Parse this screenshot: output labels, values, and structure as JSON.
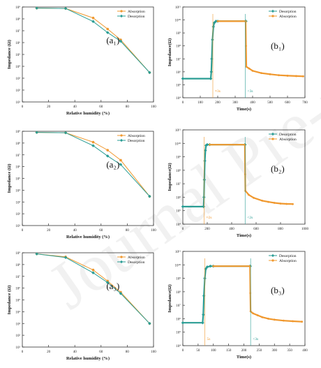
{
  "watermark": "Journal Pre-proof",
  "colors": {
    "absorption": "#f0982e",
    "desorption": "#2a9d94",
    "axis": "#333333"
  },
  "chart_data": [
    {
      "id": "a1",
      "type": "line",
      "panel_label": "(a₁)",
      "xlabel": "Relative humidity (%)",
      "ylabel": "Impedance (Ω)",
      "log_y": true,
      "xlim": [
        0,
        100
      ],
      "ylim": [
        10,
        1000000000
      ],
      "xticks": [
        "0",
        "20",
        "40",
        "60",
        "80",
        "100"
      ],
      "yticks": [
        "10¹",
        "10²",
        "10³",
        "10⁴",
        "10⁵",
        "10⁶",
        "10⁷",
        "10⁸",
        "10⁹"
      ],
      "legend": "top-right",
      "series": [
        {
          "name": "Absorption",
          "x": [
            11,
            33,
            54,
            65,
            75,
            97
          ],
          "y": [
            800000000,
            750000000,
            120000000,
            14000000,
            1700000,
            3000
          ]
        },
        {
          "name": "Desorption",
          "x": [
            11,
            33,
            54,
            65,
            75,
            97
          ],
          "y": [
            800000000,
            750000000,
            60000000,
            7000000,
            1300000,
            3000
          ]
        }
      ]
    },
    {
      "id": "b1",
      "type": "line",
      "panel_label": "(b₁)",
      "xlabel": "Time(s)",
      "ylabel": "Impedance(Ω)",
      "log_y": true,
      "xlim": [
        0,
        700
      ],
      "ylim": [
        10000,
        100000000000
      ],
      "xticks": [
        "0",
        "100",
        "200",
        "300",
        "400",
        "500",
        "600",
        "700"
      ],
      "yticks": [
        "10⁴",
        "10⁵",
        "10⁶",
        "10⁷",
        "10⁸",
        "10⁹",
        "10¹⁰",
        "10¹¹"
      ],
      "legend": "top-right",
      "annotations": [
        {
          "text": "≈3s",
          "x": 172
        },
        {
          "text": "<3s",
          "x": 358
        }
      ],
      "series": [
        {
          "name": "Desorption",
          "x": [
            0,
            160,
            163,
            166,
            170,
            175,
            180,
            190,
            200,
            360,
            362
          ],
          "y": [
            300000,
            300000,
            1000000,
            10000000,
            300000000,
            3000000000,
            6000000000,
            8000000000,
            8000000000,
            8000000000,
            8000000000
          ]
        },
        {
          "name": "Absorption",
          "x": [
            200,
            360,
            362,
            364,
            380,
            400,
            450,
            500,
            550,
            600,
            650,
            690
          ],
          "y": [
            8000000000,
            8000000000,
            100000000,
            2500000,
            1800000,
            1200000,
            800000,
            650000,
            550000,
            500000,
            470000,
            450000
          ]
        }
      ]
    },
    {
      "id": "a2",
      "type": "line",
      "panel_label": "(a₂)",
      "xlabel": "Relative humidity (%)",
      "ylabel": "Impedance (Ω)",
      "log_y": true,
      "xlim": [
        0,
        100
      ],
      "ylim": [
        10,
        1000000000
      ],
      "xticks": [
        "0",
        "20",
        "40",
        "60",
        "80",
        "100"
      ],
      "yticks": [
        "10¹",
        "10²",
        "10³",
        "10⁴",
        "10⁵",
        "10⁶",
        "10⁷",
        "10⁸",
        "10⁹"
      ],
      "legend": "top-right",
      "series": [
        {
          "name": "Absorption",
          "x": [
            11,
            33,
            54,
            65,
            75,
            97
          ],
          "y": [
            800000000,
            750000000,
            120000000,
            25000000,
            3500000,
            3000
          ]
        },
        {
          "name": "Desorption",
          "x": [
            11,
            33,
            54,
            65,
            75,
            97
          ],
          "y": [
            800000000,
            750000000,
            60000000,
            8000000,
            1500000,
            3000
          ]
        }
      ]
    },
    {
      "id": "b2",
      "type": "line",
      "panel_label": "(b₂)",
      "xlabel": "Time(s)",
      "ylabel": "Impedance(Ω)",
      "log_y": true,
      "xlim": [
        0,
        1000
      ],
      "ylim": [
        10000,
        100000000000
      ],
      "xticks": [
        "0",
        "200",
        "400",
        "600",
        "800",
        "1000"
      ],
      "yticks": [
        "10⁴",
        "10⁵",
        "10⁶",
        "10⁷",
        "10⁸",
        "10⁹",
        "10¹⁰",
        "10¹¹"
      ],
      "legend": "top-right",
      "annotations": [
        {
          "text": "≈2s",
          "x": 175
        },
        {
          "text": "<2s",
          "x": 510
        }
      ],
      "series": [
        {
          "name": "Desorption",
          "x": [
            0,
            170,
            173,
            176,
            180,
            185,
            190,
            200,
            220,
            508,
            510
          ],
          "y": [
            200000,
            200000,
            1000000,
            20000000,
            500000000,
            3000000000,
            7000000000,
            8000000000,
            8000000000,
            8000000000,
            8000000000
          ]
        },
        {
          "name": "Absorption",
          "x": [
            220,
            508,
            510,
            512,
            540,
            580,
            650,
            700,
            750,
            800,
            850,
            900
          ],
          "y": [
            8000000000,
            8000000000,
            50000000,
            3000000,
            1500000,
            900000,
            550000,
            450000,
            380000,
            340000,
            320000,
            310000
          ]
        }
      ]
    },
    {
      "id": "a3",
      "type": "line",
      "panel_label": "(a₃)",
      "xlabel": "Relative humidity (%)",
      "ylabel": "Impedance (Ω)",
      "log_y": true,
      "xlim": [
        0,
        100
      ],
      "ylim": [
        10,
        1000000000
      ],
      "xticks": [
        "0",
        "20",
        "40",
        "60",
        "80",
        "100"
      ],
      "yticks": [
        "10¹",
        "10²",
        "10³",
        "10⁴",
        "10⁵",
        "10⁶",
        "10⁷",
        "10⁸",
        "10⁹"
      ],
      "legend": "top-right",
      "series": [
        {
          "name": "Absorption",
          "x": [
            11,
            33,
            54,
            65,
            75,
            97
          ],
          "y": [
            800000000,
            450000000,
            35000000,
            4000000,
            450000,
            1000
          ]
        },
        {
          "name": "Desorption",
          "x": [
            11,
            33,
            54,
            65,
            75,
            97
          ],
          "y": [
            800000000,
            400000000,
            20000000,
            3000000,
            350000,
            1000
          ]
        }
      ]
    },
    {
      "id": "b3",
      "type": "line",
      "panel_label": "(b₃)",
      "xlabel": "Time(s)",
      "ylabel": "Impedance(Ω)",
      "log_y": true,
      "xlim": [
        0,
        400
      ],
      "ylim": [
        10000,
        100000000000
      ],
      "xticks": [
        "0",
        "50",
        "100",
        "150",
        "200",
        "250",
        "300",
        "350",
        "400"
      ],
      "yticks": [
        "10⁴",
        "10⁵",
        "10⁶",
        "10⁷",
        "10⁸",
        "10⁹",
        "10¹⁰",
        "10¹¹"
      ],
      "legend": "top-right",
      "annotations": [
        {
          "text": "5s",
          "x": 72
        },
        {
          "text": "<3s",
          "x": 222
        }
      ],
      "series": [
        {
          "name": "Desorption",
          "x": [
            0,
            65,
            67,
            69,
            72,
            75,
            80,
            90,
            100,
            220,
            221
          ],
          "y": [
            500000,
            500000,
            2000000,
            50000000,
            1000000000,
            5000000000,
            7000000000,
            8000000000,
            8000000000,
            8000000000,
            8000000000
          ]
        },
        {
          "name": "Absorption",
          "x": [
            100,
            220,
            221,
            222,
            230,
            245,
            260,
            280,
            300,
            330,
            360,
            390
          ],
          "y": [
            8000000000,
            8000000000,
            80000000,
            3500000,
            2500000,
            1800000,
            1300000,
            1000000,
            850000,
            720000,
            650000,
            600000
          ]
        }
      ]
    }
  ]
}
